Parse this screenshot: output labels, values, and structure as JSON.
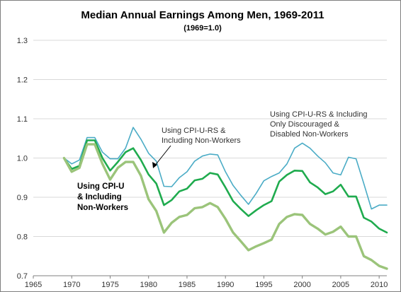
{
  "chart_data": {
    "type": "line",
    "title": "Median Annual Earnings Among Men, 1969-2011",
    "subtitle": "(1969=1.0)",
    "xlabel": "",
    "ylabel": "",
    "xlim": [
      1965,
      2011
    ],
    "ylim": [
      0.7,
      1.3
    ],
    "xticks": [
      1965,
      1970,
      1975,
      1980,
      1985,
      1990,
      1995,
      2000,
      2005,
      2010
    ],
    "yticks": [
      0.7,
      0.8,
      0.9,
      1.0,
      1.1,
      1.2,
      1.3
    ],
    "xtick_labels": [
      "1965",
      "1970",
      "1975",
      "1980",
      "1985",
      "1990",
      "1995",
      "2000",
      "2005",
      "2010"
    ],
    "ytick_labels": [
      "0.7",
      "0.8",
      "0.9",
      "1.0",
      "1.1",
      "1.2",
      "1.3"
    ],
    "grid": "horizontal",
    "x": [
      1969,
      1970,
      1971,
      1972,
      1973,
      1974,
      1975,
      1976,
      1977,
      1978,
      1979,
      1980,
      1981,
      1982,
      1983,
      1984,
      1985,
      1986,
      1987,
      1988,
      1989,
      1990,
      1991,
      1992,
      1993,
      1994,
      1995,
      1996,
      1997,
      1998,
      1999,
      2000,
      2001,
      2002,
      2003,
      2004,
      2005,
      2006,
      2007,
      2008,
      2009,
      2010,
      2011
    ],
    "series": [
      {
        "color": "#4bacc6",
        "values": [
          1.0,
          0.985,
          0.995,
          1.052,
          1.052,
          1.015,
          0.998,
          0.998,
          1.025,
          1.078,
          1.048,
          1.012,
          0.992,
          0.928,
          0.927,
          0.95,
          0.965,
          0.992,
          1.005,
          1.01,
          1.008,
          0.965,
          0.93,
          0.905,
          0.882,
          0.91,
          0.942,
          0.953,
          0.962,
          0.985,
          1.025,
          1.038,
          1.025,
          1.005,
          0.988,
          0.962,
          0.957,
          1.002,
          0.998,
          0.935,
          0.87,
          0.88,
          0.88
        ]
      },
      {
        "color": "#1fab4e",
        "values": [
          1.0,
          0.972,
          0.98,
          1.045,
          1.045,
          1.0,
          0.968,
          0.99,
          1.015,
          1.025,
          0.995,
          0.958,
          0.935,
          0.88,
          0.893,
          0.915,
          0.922,
          0.943,
          0.947,
          0.962,
          0.958,
          0.925,
          0.89,
          0.87,
          0.852,
          0.867,
          0.88,
          0.89,
          0.94,
          0.957,
          0.968,
          0.967,
          0.938,
          0.925,
          0.908,
          0.915,
          0.932,
          0.902,
          0.902,
          0.848,
          0.838,
          0.82,
          0.81
        ]
      },
      {
        "color": "#9bc47a",
        "values": [
          1.0,
          0.965,
          0.975,
          1.035,
          1.035,
          0.985,
          0.945,
          0.975,
          0.99,
          0.99,
          0.955,
          0.895,
          0.865,
          0.81,
          0.835,
          0.85,
          0.855,
          0.872,
          0.875,
          0.885,
          0.875,
          0.845,
          0.81,
          0.788,
          0.765,
          0.775,
          0.783,
          0.792,
          0.832,
          0.85,
          0.857,
          0.855,
          0.832,
          0.82,
          0.805,
          0.812,
          0.825,
          0.8,
          0.8,
          0.75,
          0.74,
          0.725,
          0.718
        ]
      }
    ],
    "annotations": {
      "top_line": [
        "Using CPI-U-RS & Including",
        "Only Discouraged &",
        "Disabled Non-Workers"
      ],
      "middle_line": [
        "Using CPI-U-RS &",
        "Including Non-Workers"
      ],
      "bottom_line": [
        "Using CPI-U",
        "& Including",
        "Non-Workers"
      ]
    }
  }
}
